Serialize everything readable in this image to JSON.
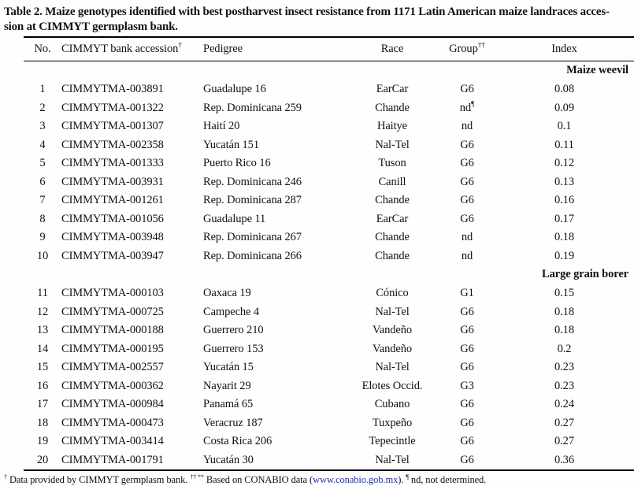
{
  "title": {
    "line1": "Table 2. Maize genotypes identified with best postharvest insect resistance from 1171 Latin American maize landraces acces-",
    "line2": "sion at CIMMYT germplasm bank."
  },
  "table": {
    "columns": [
      {
        "key": "no",
        "label": "No."
      },
      {
        "key": "accession",
        "label": "CIMMYT bank accession†"
      },
      {
        "key": "pedigree",
        "label": "Pedigree"
      },
      {
        "key": "race",
        "label": "Race"
      },
      {
        "key": "group",
        "label": "Group††"
      },
      {
        "key": "index",
        "label": "Index"
      }
    ],
    "sections": [
      {
        "label": "Maize weevil",
        "rows": [
          [
            "1",
            "CIMMYTMA-003891",
            "Guadalupe 16",
            "EarCar",
            "G6",
            "0.08"
          ],
          [
            "2",
            "CIMMYTMA-001322",
            "Rep. Dominicana 259",
            "Chande",
            "nd¶",
            "0.09"
          ],
          [
            "3",
            "CIMMYTMA-001307",
            "Haití 20",
            "Haitye",
            "nd",
            "0.1"
          ],
          [
            "4",
            "CIMMYTMA-002358",
            "Yucatán 151",
            "Nal-Tel",
            "G6",
            "0.11"
          ],
          [
            "5",
            "CIMMYTMA-001333",
            "Puerto Rico 16",
            "Tuson",
            "G6",
            "0.12"
          ],
          [
            "6",
            "CIMMYTMA-003931",
            "Rep. Dominicana 246",
            "Canill",
            "G6",
            "0.13"
          ],
          [
            "7",
            "CIMMYTMA-001261",
            "Rep. Dominicana 287",
            "Chande",
            "G6",
            "0.16"
          ],
          [
            "8",
            "CIMMYTMA-001056",
            "Guadalupe 11",
            "EarCar",
            "G6",
            "0.17"
          ],
          [
            "9",
            "CIMMYTMA-003948",
            "Rep. Dominicana 267",
            "Chande",
            "nd",
            "0.18"
          ],
          [
            "10",
            "CIMMYTMA-003947",
            "Rep. Dominicana 266",
            "Chande",
            "nd",
            "0.19"
          ]
        ]
      },
      {
        "label": "Large grain borer",
        "rows": [
          [
            "11",
            "CIMMYTMA-000103",
            "Oaxaca 19",
            "Cónico",
            "G1",
            "0.15"
          ],
          [
            "12",
            "CIMMYTMA-000725",
            "Campeche 4",
            "Nal-Tel",
            "G6",
            "0.18"
          ],
          [
            "13",
            "CIMMYTMA-000188",
            "Guerrero 210",
            "Vandeño",
            "G6",
            "0.18"
          ],
          [
            "14",
            "CIMMYTMA-000195",
            "Guerrero 153",
            "Vandeño",
            "G6",
            "0.2"
          ],
          [
            "15",
            "CIMMYTMA-002557",
            "Yucatán 15",
            "Nal-Tel",
            "G6",
            "0.23"
          ],
          [
            "16",
            "CIMMYTMA-000362",
            "Nayarit 29",
            "Elotes Occid.",
            "G3",
            "0.23"
          ],
          [
            "17",
            "CIMMYTMA-000984",
            "Panamá 65",
            "Cubano",
            "G6",
            "0.24"
          ],
          [
            "18",
            "CIMMYTMA-000473",
            "Veracruz 187",
            "Tuxpeño",
            "G6",
            "0.27"
          ],
          [
            "19",
            "CIMMYTMA-003414",
            "Costa Rica 206",
            "Tepecintle",
            "G6",
            "0.27"
          ],
          [
            "20",
            "CIMMYTMA-001791",
            "Yucatán 30",
            "Nal-Tel",
            "G6",
            "0.36"
          ]
        ]
      }
    ]
  },
  "footnote": {
    "sup1": "†",
    "part1": "Data provided by CIMMYT germplasm bank.",
    "sup2": "†† **",
    "part2": "Based on CONABIO data (",
    "link": "www.conabio.gob.mx",
    "part3": ").",
    "sup3": "¶",
    "part4": "nd, not determined.",
    "link_color": "#2230bb"
  }
}
